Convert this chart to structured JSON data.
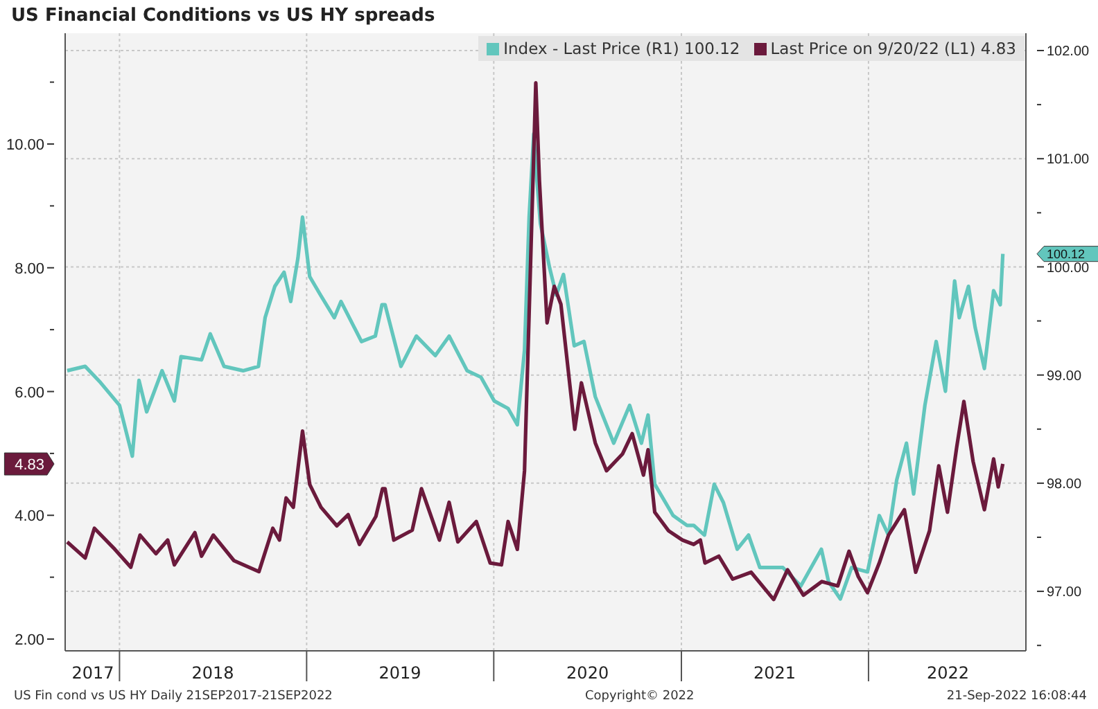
{
  "chart_data": {
    "type": "line",
    "title": "US Financial Conditions vs US HY spreads",
    "xlim": [
      "2017-09-17",
      "2022-11-04"
    ],
    "xticks": [
      {
        "value": "2017-11-10",
        "label": "2017"
      },
      {
        "value": "2018-01-01",
        "label": null
      },
      {
        "value": "2018-07-02",
        "label": "2018"
      },
      {
        "value": "2019-01-01",
        "label": null
      },
      {
        "value": "2019-07-02",
        "label": "2019"
      },
      {
        "value": "2020-01-01",
        "label": null
      },
      {
        "value": "2020-07-02",
        "label": "2020"
      },
      {
        "value": "2021-01-01",
        "label": null
      },
      {
        "value": "2021-07-02",
        "label": "2021"
      },
      {
        "value": "2022-01-01",
        "label": null
      },
      {
        "value": "2022-06-05",
        "label": "2022"
      }
    ],
    "ylim": [
      1.81,
      11.79
    ],
    "yticks": [
      {
        "value": 2,
        "label": "2.00"
      },
      {
        "value": 3,
        "label": null
      },
      {
        "value": 4,
        "label": "4.00"
      },
      {
        "value": 4.83,
        "label": "4.83"
      },
      {
        "value": 5,
        "label": null
      },
      {
        "value": 6,
        "label": "6.00"
      },
      {
        "value": 7,
        "label": null
      },
      {
        "value": 8,
        "label": "8.00"
      },
      {
        "value": 9,
        "label": null
      },
      {
        "value": 10,
        "label": "10.00"
      },
      {
        "value": 11,
        "label": null
      }
    ],
    "y2lim": [
      96.45,
      102.16
    ],
    "y2ticks": [
      {
        "value": 96.5,
        "label": null
      },
      {
        "value": 97,
        "label": "97.00"
      },
      {
        "value": 97.5,
        "label": null
      },
      {
        "value": 98,
        "label": "98.00"
      },
      {
        "value": 98.5,
        "label": null
      },
      {
        "value": 99,
        "label": "99.00"
      },
      {
        "value": 99.5,
        "label": null
      },
      {
        "value": 100,
        "label": "100.00"
      },
      {
        "value": 100.12,
        "label": "100.12"
      },
      {
        "value": 100.5,
        "label": null
      },
      {
        "value": 101,
        "label": "101.00"
      },
      {
        "value": 101.5,
        "label": null
      },
      {
        "value": 102,
        "label": "102.00"
      }
    ],
    "grid": true,
    "legend": "top right",
    "line_style": "solid",
    "annotations": [
      "US Fin cond vs US HY  Daily 21SEP2017-21SEP2022",
      "Copyright© 2022",
      "21-Sep-2022 16:08:44"
    ],
    "series": [
      {
        "name": "Index - Last Price (R1) 100.12",
        "color": "#62c6bd",
        "axis": "y2",
        "x": [
          "2017-09-21",
          "2017-10-26",
          "2017-11-25",
          "2018-01-01",
          "2018-01-26",
          "2018-02-08",
          "2018-02-23",
          "2018-03-25",
          "2018-04-18",
          "2018-05-01",
          "2018-06-10",
          "2018-06-27",
          "2018-07-24",
          "2018-08-30",
          "2018-09-29",
          "2018-10-12",
          "2018-10-31",
          "2018-11-18",
          "2018-12-01",
          "2018-12-15",
          "2018-12-24",
          "2019-01-07",
          "2019-01-28",
          "2019-02-24",
          "2019-03-09",
          "2019-04-18",
          "2019-05-15",
          "2019-05-28",
          "2019-06-03",
          "2019-07-04",
          "2019-08-03",
          "2019-09-09",
          "2019-10-06",
          "2019-11-10",
          "2019-12-07",
          "2020-01-02",
          "2020-01-29",
          "2020-02-16",
          "2020-03-01",
          "2020-03-10",
          "2020-03-19",
          "2020-03-23",
          "2020-04-01",
          "2020-04-19",
          "2020-05-02",
          "2020-05-16",
          "2020-06-06",
          "2020-06-25",
          "2020-07-17",
          "2020-08-22",
          "2020-09-22",
          "2020-10-15",
          "2020-10-28",
          "2020-11-10",
          "2020-12-16",
          "2021-01-12",
          "2021-01-25",
          "2021-02-15",
          "2021-03-06",
          "2021-03-24",
          "2021-04-20",
          "2021-05-12",
          "2021-06-03",
          "2021-07-18",
          "2021-08-22",
          "2021-10-01",
          "2021-10-15",
          "2021-11-07",
          "2021-11-29",
          "2021-12-30",
          "2022-01-22",
          "2022-02-09",
          "2022-02-25",
          "2022-03-16",
          "2022-03-30",
          "2022-04-21",
          "2022-05-13",
          "2022-05-31",
          "2022-06-18",
          "2022-06-27",
          "2022-07-15",
          "2022-07-28",
          "2022-08-15",
          "2022-09-02",
          "2022-09-15",
          "2022-09-20"
        ],
        "values": [
          99.04,
          99.08,
          98.93,
          98.72,
          98.25,
          98.95,
          98.66,
          99.04,
          98.76,
          99.17,
          99.14,
          99.38,
          99.08,
          99.04,
          99.08,
          99.53,
          99.82,
          99.95,
          99.68,
          100.08,
          100.46,
          99.91,
          99.74,
          99.53,
          99.68,
          99.31,
          99.36,
          99.65,
          99.65,
          99.08,
          99.36,
          99.18,
          99.36,
          99.04,
          98.98,
          98.76,
          98.69,
          98.54,
          99.23,
          100.46,
          101.23,
          100.93,
          100.4,
          99.99,
          99.74,
          99.93,
          99.27,
          99.31,
          98.8,
          98.37,
          98.72,
          98.37,
          98.63,
          97.99,
          97.7,
          97.61,
          97.61,
          97.52,
          97.99,
          97.82,
          97.39,
          97.52,
          97.22,
          97.22,
          97.05,
          97.39,
          97.09,
          96.93,
          97.22,
          97.18,
          97.7,
          97.52,
          98.03,
          98.37,
          97.9,
          98.72,
          99.31,
          98.85,
          99.87,
          99.53,
          99.82,
          99.44,
          99.06,
          99.78,
          99.65,
          100.12
        ]
      },
      {
        "name": "Last Price on 9/20/22 (L1) 4.83",
        "color": "#6b1a3c",
        "axis": "y",
        "x": [
          "2017-09-21",
          "2017-10-26",
          "2017-11-13",
          "2017-12-23",
          "2018-01-23",
          "2018-02-10",
          "2018-03-13",
          "2018-04-05",
          "2018-04-18",
          "2018-05-28",
          "2018-06-10",
          "2018-07-03",
          "2018-08-12",
          "2018-09-30",
          "2018-10-27",
          "2018-11-09",
          "2018-11-22",
          "2018-12-06",
          "2018-12-24",
          "2019-01-07",
          "2019-01-29",
          "2019-03-01",
          "2019-03-23",
          "2019-04-14",
          "2019-05-16",
          "2019-05-29",
          "2019-06-03",
          "2019-06-20",
          "2019-07-26",
          "2019-08-13",
          "2019-09-17",
          "2019-10-06",
          "2019-10-23",
          "2019-11-28",
          "2019-12-25",
          "2020-01-16",
          "2020-01-29",
          "2020-02-16",
          "2020-03-01",
          "2020-03-10",
          "2020-03-23",
          "2020-03-30",
          "2020-04-14",
          "2020-04-28",
          "2020-05-11",
          "2020-06-07",
          "2020-06-20",
          "2020-07-17",
          "2020-08-08",
          "2020-09-08",
          "2020-09-27",
          "2020-10-19",
          "2020-10-28",
          "2020-11-10",
          "2020-12-07",
          "2021-01-03",
          "2021-01-25",
          "2021-02-07",
          "2021-02-16",
          "2021-03-15",
          "2021-04-11",
          "2021-05-17",
          "2021-06-30",
          "2021-07-27",
          "2021-08-27",
          "2021-10-02",
          "2021-11-02",
          "2021-11-24",
          "2021-12-12",
          "2021-12-30",
          "2022-01-22",
          "2022-02-09",
          "2022-03-12",
          "2022-04-03",
          "2022-04-30",
          "2022-05-18",
          "2022-06-04",
          "2022-06-22",
          "2022-07-06",
          "2022-07-24",
          "2022-08-15",
          "2022-09-02",
          "2022-09-11",
          "2022-09-20"
        ],
        "values": [
          3.57,
          3.31,
          3.79,
          3.45,
          3.16,
          3.68,
          3.38,
          3.6,
          3.2,
          3.72,
          3.34,
          3.68,
          3.27,
          3.09,
          3.79,
          3.6,
          4.28,
          4.13,
          5.36,
          4.5,
          4.13,
          3.83,
          4.01,
          3.53,
          3.98,
          4.43,
          4.43,
          3.6,
          3.76,
          4.43,
          3.6,
          4.21,
          3.57,
          3.9,
          3.23,
          3.2,
          3.9,
          3.45,
          4.72,
          7.26,
          10.99,
          9.42,
          7.11,
          7.7,
          7.41,
          5.39,
          6.14,
          5.17,
          4.72,
          4.99,
          5.32,
          4.65,
          5.06,
          4.05,
          3.75,
          3.6,
          3.53,
          3.6,
          3.23,
          3.34,
          2.97,
          3.08,
          2.64,
          3.12,
          2.71,
          2.93,
          2.86,
          3.42,
          3.01,
          2.75,
          3.23,
          3.68,
          4.09,
          3.08,
          3.75,
          4.8,
          4.05,
          5.1,
          5.84,
          4.87,
          4.09,
          4.91,
          4.46,
          4.83
        ]
      }
    ]
  }
}
